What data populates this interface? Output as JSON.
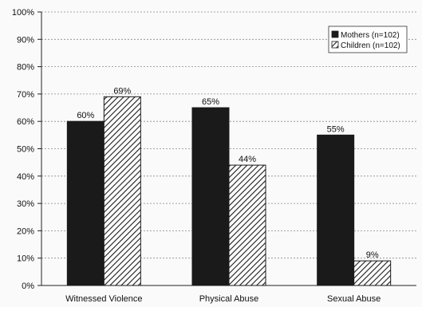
{
  "chart_data": {
    "type": "bar",
    "title": "",
    "xlabel": "",
    "ylabel": "",
    "ylim": [
      0,
      100
    ],
    "yticks": [
      0,
      10,
      20,
      30,
      40,
      50,
      60,
      70,
      80,
      90,
      100
    ],
    "ytick_labels": [
      "0%",
      "10%",
      "20%",
      "30%",
      "40%",
      "50%",
      "60%",
      "70%",
      "80%",
      "90%",
      "100%"
    ],
    "categories": [
      "Witnessed Violence",
      "Physical Abuse",
      "Sexual Abuse"
    ],
    "series": [
      {
        "name": "Mothers (n=102)",
        "values": [
          60,
          65,
          55
        ],
        "labels": [
          "60%",
          "65%",
          "55%"
        ],
        "fill": "#1a1a1a",
        "pattern": "solid"
      },
      {
        "name": "Children (n=102)",
        "values": [
          69,
          44,
          9
        ],
        "labels": [
          "69%",
          "44%",
          "9%"
        ],
        "fill": "#ffffff",
        "pattern": "diagonal-hatch"
      }
    ],
    "grid": true,
    "legend_position": "top-right"
  }
}
